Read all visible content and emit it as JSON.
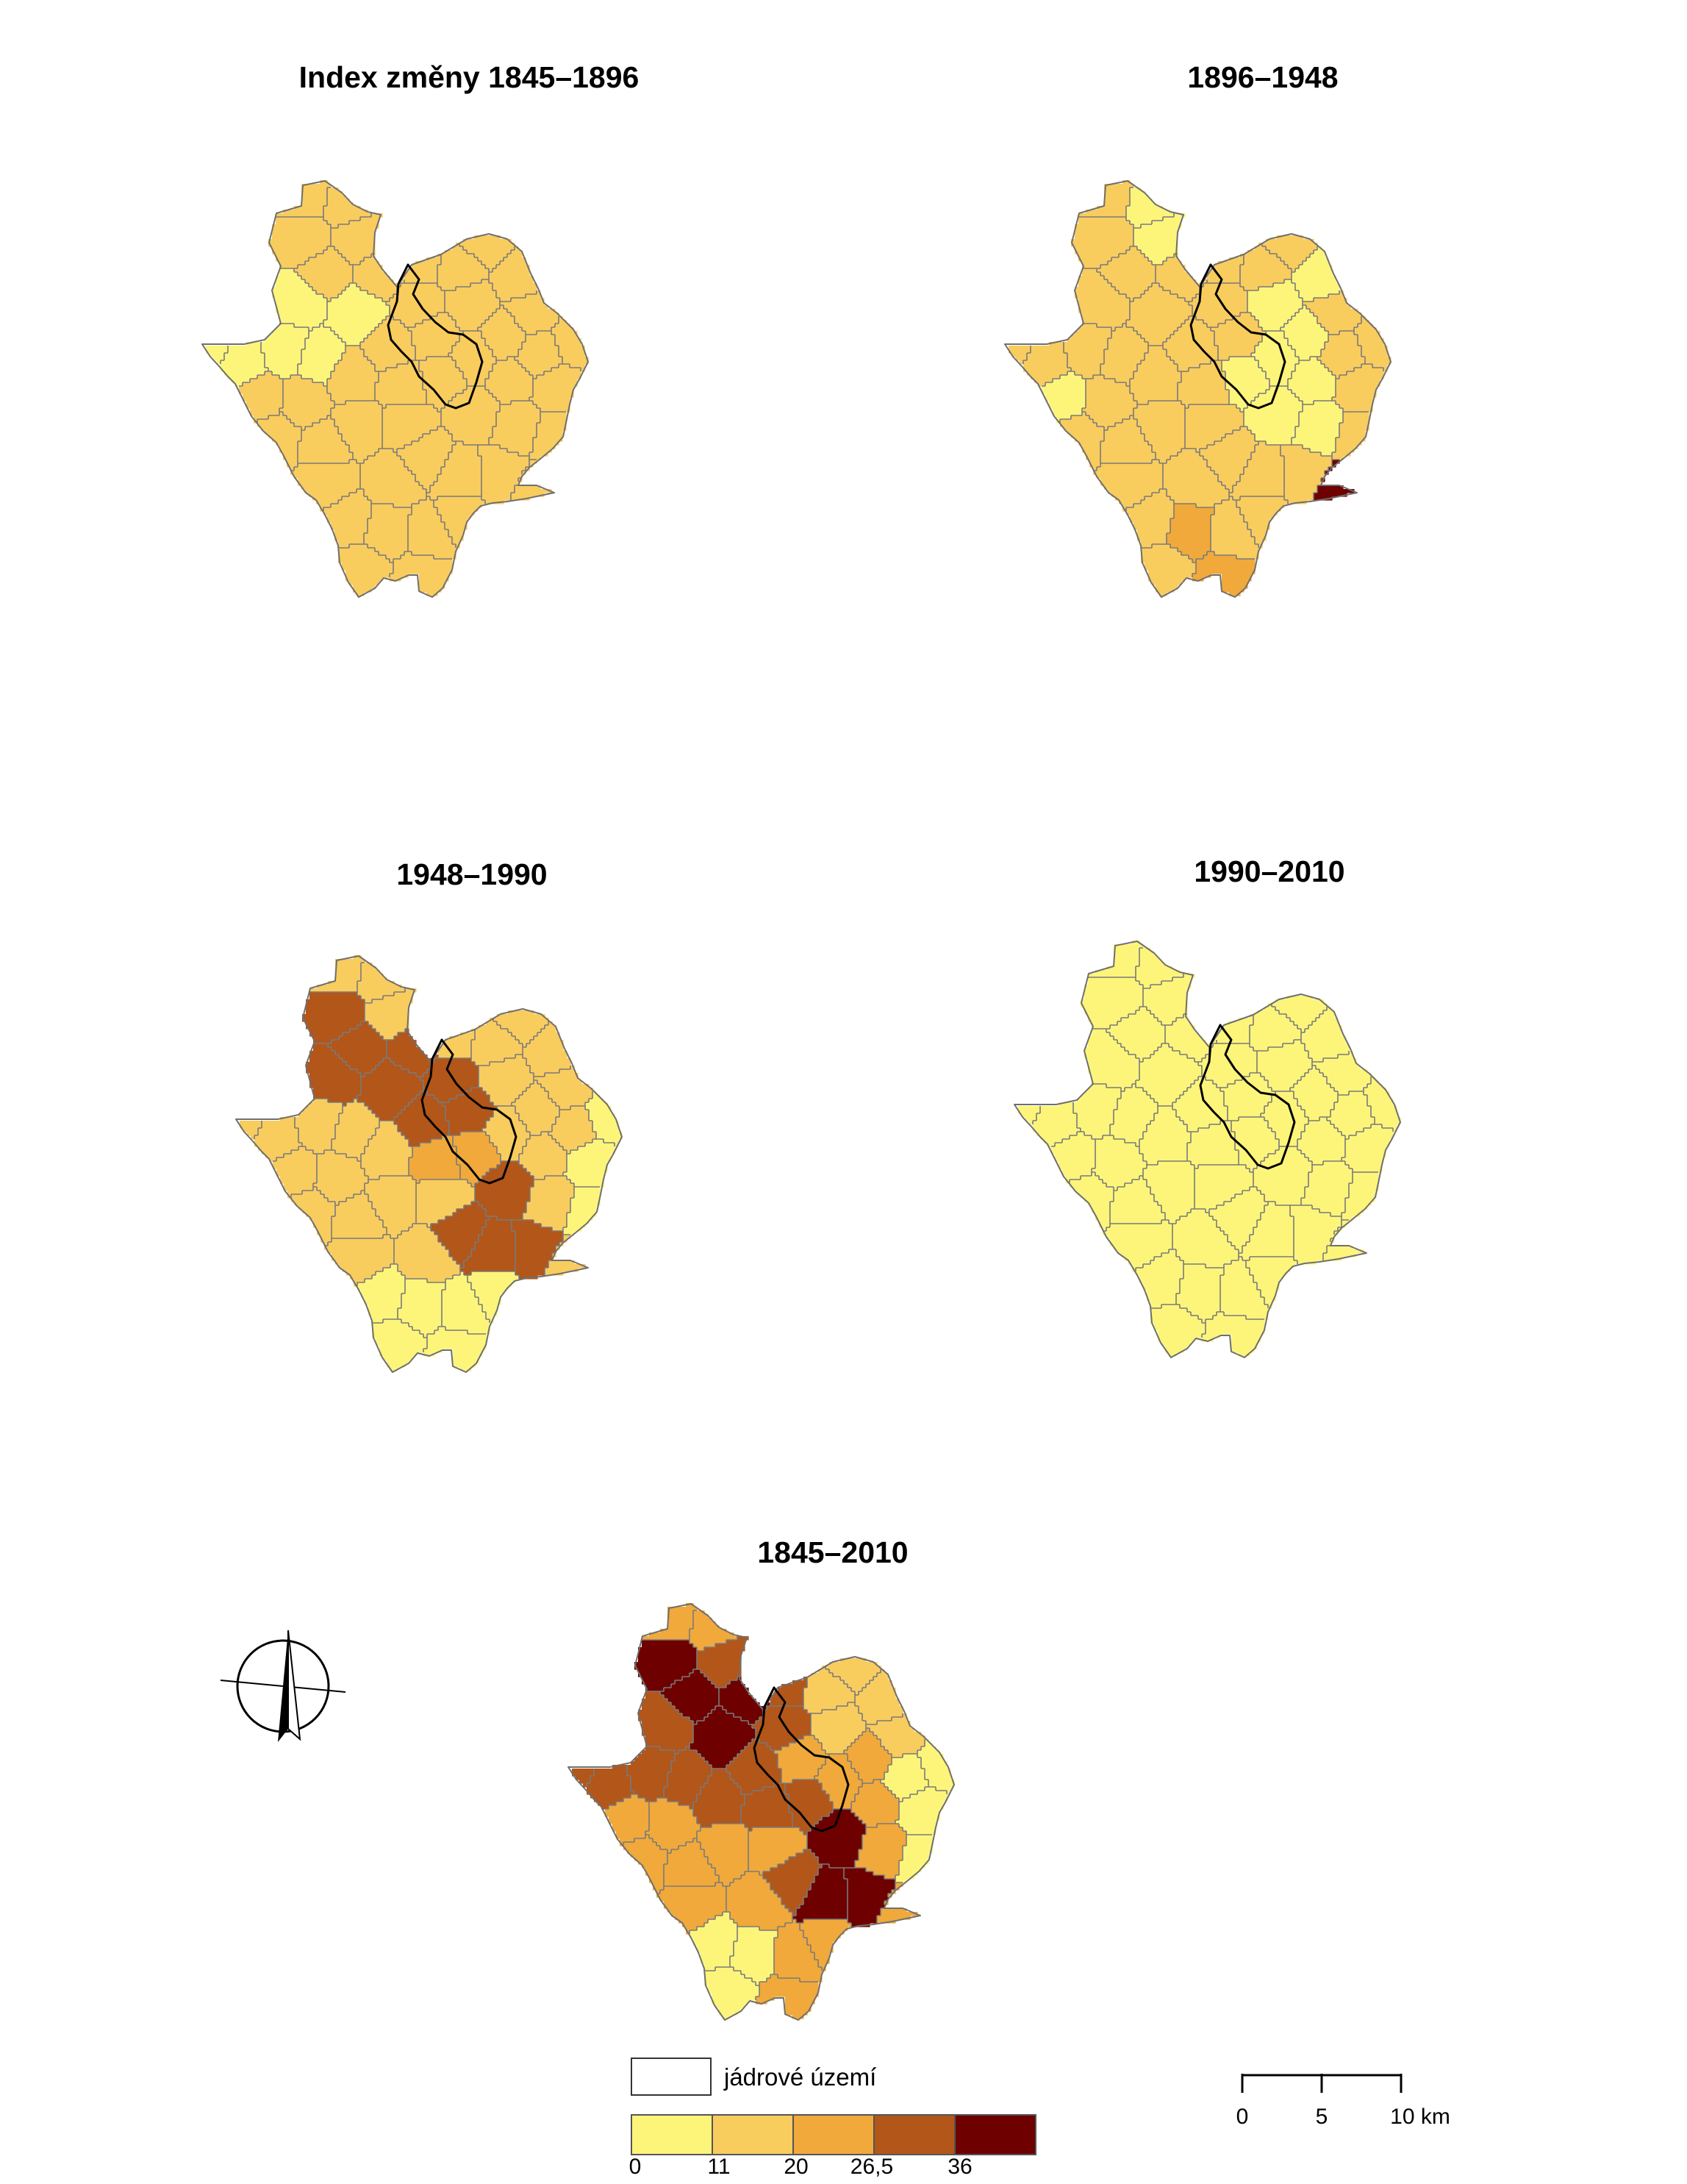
{
  "maps": [
    {
      "title": "Index změny 1845–1896"
    },
    {
      "title": "1896–1948"
    },
    {
      "title": "1948–1990"
    },
    {
      "title": "1990–2010"
    },
    {
      "title": "1845–2010"
    }
  ],
  "legend": {
    "core_label": "jádrové území",
    "classes": [
      "#fdf57a",
      "#f9cc5e",
      "#f0a93a",
      "#b2561a",
      "#6e0000"
    ],
    "ticks": [
      "0",
      "11",
      "20",
      "26,5",
      "36"
    ]
  },
  "scale": {
    "ticks": [
      "0",
      "5",
      "10 km"
    ]
  },
  "icons": {
    "north": "north-arrow-icon"
  }
}
